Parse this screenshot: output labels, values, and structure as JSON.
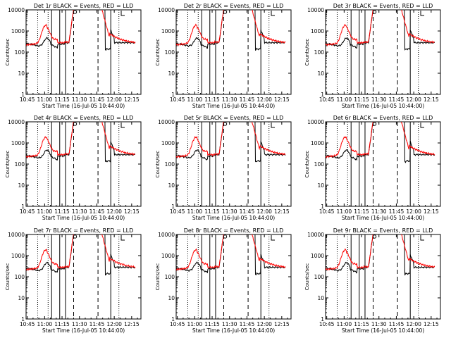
{
  "figure": {
    "background": "#ffffff",
    "colors": {
      "events": "#000000",
      "lld": "#ff0000",
      "axes": "#000000"
    }
  },
  "chart_data": [
    {
      "type": "line",
      "title": "Det 1r BLACK = Events, RED = LLD",
      "xlabel": "Start Time (16-Jul-05 10:44:00)",
      "ylabel": "Counts/sec",
      "yscale": "log",
      "ylim": [
        1,
        10000
      ],
      "xlim": [
        "10:44",
        "12:23"
      ],
      "x_ticks": [
        "10:45",
        "11:00",
        "11:15",
        "11:30",
        "11:45",
        "12:00",
        "12:15"
      ],
      "y_ticks": [
        "1",
        "10",
        "100",
        "1000",
        "10000"
      ],
      "series": [
        {
          "name": "Events",
          "color": "#000000"
        },
        {
          "name": "LLD",
          "color": "#ff0000"
        }
      ]
    },
    {
      "type": "line",
      "title": "Det 2r BLACK = Events, RED = LLD",
      "xlabel": "Start Time (16-Jul-05 10:44:00)",
      "ylabel": "Counts/sec",
      "yscale": "log",
      "ylim": [
        1,
        10000
      ],
      "xlim": [
        "10:44",
        "12:23"
      ],
      "x_ticks": [
        "10:45",
        "11:00",
        "11:15",
        "11:30",
        "11:45",
        "12:00",
        "12:15"
      ],
      "y_ticks": [
        "1",
        "10",
        "100",
        "1000",
        "10000"
      ],
      "series": [
        {
          "name": "Events",
          "color": "#000000"
        },
        {
          "name": "LLD",
          "color": "#ff0000"
        }
      ]
    },
    {
      "type": "line",
      "title": "Det 3r BLACK = Events, RED = LLD",
      "xlabel": "Start Time (16-Jul-05 10:44:00)",
      "ylabel": "Counts/sec",
      "yscale": "log",
      "ylim": [
        1,
        10000
      ],
      "xlim": [
        "10:44",
        "12:23"
      ],
      "x_ticks": [
        "10:45",
        "11:00",
        "11:15",
        "11:30",
        "11:45",
        "12:00",
        "12:15"
      ],
      "y_ticks": [
        "1",
        "10",
        "100",
        "1000",
        "10000"
      ],
      "series": [
        {
          "name": "Events",
          "color": "#000000"
        },
        {
          "name": "LLD",
          "color": "#ff0000"
        }
      ]
    },
    {
      "type": "line",
      "title": "Det 4r BLACK = Events, RED = LLD",
      "xlabel": "Start Time (16-Jul-05 10:44:00)",
      "ylabel": "Counts/sec",
      "yscale": "log",
      "ylim": [
        1,
        10000
      ],
      "xlim": [
        "10:44",
        "12:23"
      ],
      "x_ticks": [
        "10:45",
        "11:00",
        "11:15",
        "11:30",
        "11:45",
        "12:00",
        "12:15"
      ],
      "y_ticks": [
        "1",
        "10",
        "100",
        "1000",
        "10000"
      ],
      "series": [
        {
          "name": "Events",
          "color": "#000000"
        },
        {
          "name": "LLD",
          "color": "#ff0000"
        }
      ]
    },
    {
      "type": "line",
      "title": "Det 5r BLACK = Events, RED = LLD",
      "xlabel": "Start Time (16-Jul-05 10:44:00)",
      "ylabel": "Counts/sec",
      "yscale": "log",
      "ylim": [
        1,
        10000
      ],
      "xlim": [
        "10:44",
        "12:23"
      ],
      "x_ticks": [
        "10:45",
        "11:00",
        "11:15",
        "11:30",
        "11:45",
        "12:00",
        "12:15"
      ],
      "y_ticks": [
        "1",
        "10",
        "100",
        "1000",
        "10000"
      ],
      "series": [
        {
          "name": "Events",
          "color": "#000000"
        },
        {
          "name": "LLD",
          "color": "#ff0000"
        }
      ]
    },
    {
      "type": "line",
      "title": "Det 6r BLACK = Events, RED = LLD",
      "xlabel": "Start Time (16-Jul-05 10:44:00)",
      "ylabel": "Counts/sec",
      "yscale": "log",
      "ylim": [
        1,
        10000
      ],
      "xlim": [
        "10:44",
        "12:23"
      ],
      "x_ticks": [
        "10:45",
        "11:00",
        "11:15",
        "11:30",
        "11:45",
        "12:00",
        "12:15"
      ],
      "y_ticks": [
        "1",
        "10",
        "100",
        "1000",
        "10000"
      ],
      "series": [
        {
          "name": "Events",
          "color": "#000000"
        },
        {
          "name": "LLD",
          "color": "#ff0000"
        }
      ]
    },
    {
      "type": "line",
      "title": "Det 7r BLACK = Events, RED = LLD",
      "xlabel": "Start Time (16-Jul-05 10:44:00)",
      "ylabel": "Counts/sec",
      "yscale": "log",
      "ylim": [
        1,
        10000
      ],
      "xlim": [
        "10:44",
        "12:23"
      ],
      "x_ticks": [
        "10:45",
        "11:00",
        "11:15",
        "11:30",
        "11:45",
        "12:00",
        "12:15"
      ],
      "y_ticks": [
        "1",
        "10",
        "100",
        "1000",
        "10000"
      ],
      "series": [
        {
          "name": "Events",
          "color": "#000000"
        },
        {
          "name": "LLD",
          "color": "#ff0000"
        }
      ]
    },
    {
      "type": "line",
      "title": "Det 8r BLACK = Events, RED = LLD",
      "xlabel": "Start Time (16-Jul-05 10:44:00)",
      "ylabel": "Counts/sec",
      "yscale": "log",
      "ylim": [
        1,
        10000
      ],
      "xlim": [
        "10:44",
        "12:23"
      ],
      "x_ticks": [
        "10:45",
        "11:00",
        "11:15",
        "11:30",
        "11:45",
        "12:00",
        "12:15"
      ],
      "y_ticks": [
        "1",
        "10",
        "100",
        "1000",
        "10000"
      ],
      "series": [
        {
          "name": "Events",
          "color": "#000000"
        },
        {
          "name": "LLD",
          "color": "#ff0000"
        }
      ]
    },
    {
      "type": "line",
      "title": "Det 9r BLACK = Events, RED = LLD",
      "xlabel": "Start Time (16-Jul-05 10:44:00)",
      "ylabel": "Counts/sec",
      "yscale": "log",
      "ylim": [
        1,
        10000
      ],
      "xlim": [
        "10:44",
        "12:23"
      ],
      "x_ticks": [
        "10:45",
        "11:00",
        "11:15",
        "11:30",
        "11:45",
        "12:00",
        "12:15"
      ],
      "y_ticks": [
        "1",
        "10",
        "100",
        "1000",
        "10000"
      ],
      "series": [
        {
          "name": "Events",
          "color": "#000000"
        },
        {
          "name": "LLD",
          "color": "#ff0000"
        }
      ]
    }
  ]
}
